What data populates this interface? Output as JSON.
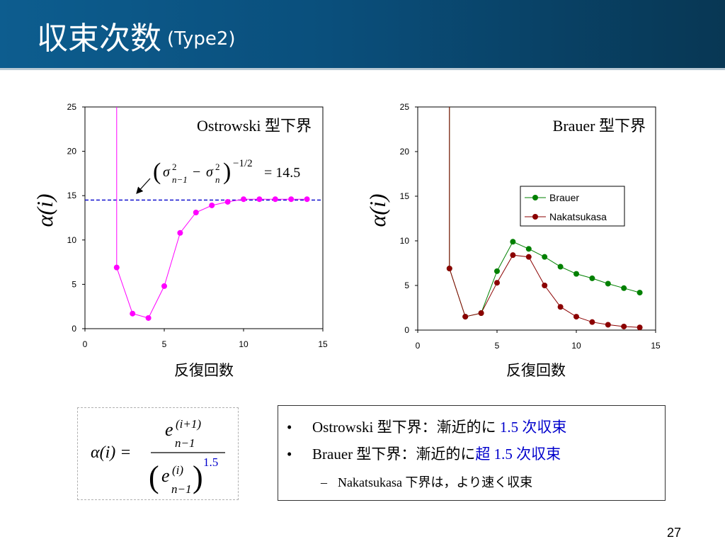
{
  "slide": {
    "title": "収束次数",
    "subtitle": "(Type2)",
    "page_number": "27"
  },
  "charts": {
    "left": {
      "plot_label": "Ostrowski 型下界",
      "annotation_value": "= 14.5",
      "ylabel": "α(i)",
      "xlabel": "反復回数"
    },
    "right": {
      "plot_label": "Brauer 型下界",
      "ylabel": "α(i)",
      "xlabel": "反復回数",
      "legend": [
        "Brauer",
        "Nakatsukasa"
      ]
    }
  },
  "formula": {
    "lhs": "α(i) =",
    "num": "e",
    "num_sup": "(i+1)",
    "num_sub": "n−1",
    "den": "e",
    "den_sup": "(i)",
    "den_sub": "n−1",
    "exponent": "1.5"
  },
  "notes": {
    "line1_a": "Ostrowski 型下界：漸近的に ",
    "line1_b": "1.5 次収束",
    "line2_a": "Brauer 型下界：漸近的に",
    "line2_b": "超 1.5 次収束",
    "line3": "Nakatsukasa 下界は，より速く収束"
  },
  "colors": {
    "header_start": "#0d5d8f",
    "header_end": "#083754",
    "ostrowski": "#ff00ff",
    "brauer": "#008000",
    "nakatsukasa": "#8b0000",
    "reference_line": "#0000cc",
    "highlight_text": "#0000cc"
  },
  "chart_data": [
    {
      "type": "line",
      "title": "Ostrowski 型下界",
      "xlabel": "反復回数",
      "ylabel": "α(i)",
      "xlim": [
        0,
        15
      ],
      "ylim": [
        0,
        25
      ],
      "xticks": [
        0,
        5,
        10,
        15
      ],
      "yticks": [
        0,
        5,
        10,
        15,
        20,
        25
      ],
      "reference_line": {
        "y": 14.5,
        "label": "(σ²ₙ₋₁ − σ²ₙ)^(−1/2) = 14.5",
        "style": "dashed"
      },
      "series": [
        {
          "x": [
            2,
            3,
            4,
            5,
            6,
            7,
            8,
            9,
            10,
            11,
            12,
            13,
            14
          ],
          "y": [
            6.9,
            1.7,
            1.2,
            4.8,
            10.8,
            13.1,
            13.9,
            14.3,
            14.6,
            14.6,
            14.6,
            14.6,
            14.6
          ],
          "offscale_start": 25
        }
      ]
    },
    {
      "type": "line",
      "title": "Brauer 型下界",
      "xlabel": "反復回数",
      "ylabel": "α(i)",
      "xlim": [
        0,
        15
      ],
      "ylim": [
        0,
        25
      ],
      "xticks": [
        0,
        5,
        10,
        15
      ],
      "yticks": [
        0,
        5,
        10,
        15,
        20,
        25
      ],
      "legend": "right",
      "series": [
        {
          "name": "Brauer",
          "x": [
            2,
            3,
            4,
            5,
            6,
            7,
            8,
            9,
            10,
            11,
            12,
            13,
            14
          ],
          "y": [
            6.9,
            1.5,
            1.9,
            6.6,
            9.9,
            9.1,
            8.2,
            7.1,
            6.3,
            5.8,
            5.2,
            4.7,
            4.2
          ],
          "offscale_start": 25
        },
        {
          "name": "Nakatsukasa",
          "x": [
            2,
            3,
            4,
            5,
            6,
            7,
            8,
            9,
            10,
            11,
            12,
            13,
            14
          ],
          "y": [
            6.9,
            1.5,
            1.9,
            5.3,
            8.4,
            8.2,
            5.0,
            2.6,
            1.5,
            0.9,
            0.6,
            0.4,
            0.3
          ],
          "offscale_start": 25
        }
      ]
    }
  ]
}
